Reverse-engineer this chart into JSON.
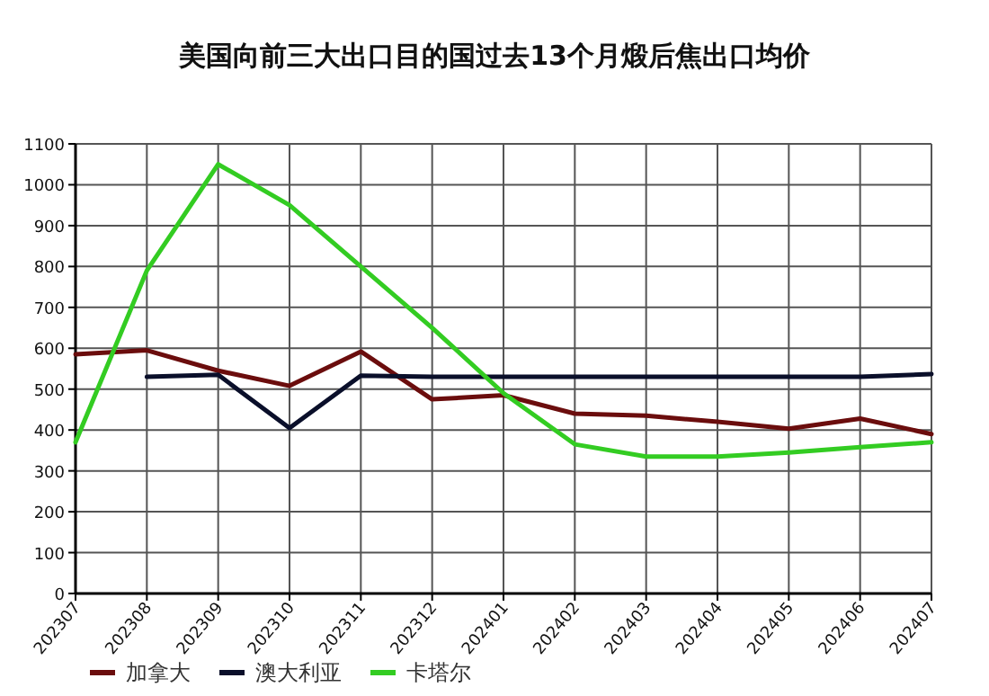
{
  "chart_data": {
    "type": "line",
    "title": "美国向前三大出口目的国过去13个月煅后焦出口均价",
    "categories": [
      "202307",
      "202308",
      "202309",
      "202310",
      "202311",
      "202312",
      "202401",
      "202402",
      "202403",
      "202404",
      "202405",
      "202406",
      "202407"
    ],
    "series": [
      {
        "name": "加拿大",
        "color": "#6b0d0d",
        "values": [
          585,
          595,
          545,
          508,
          592,
          475,
          485,
          440,
          435,
          420,
          403,
          428,
          390
        ]
      },
      {
        "name": "澳大利亚",
        "color": "#0a0f2a",
        "values": [
          null,
          530,
          535,
          405,
          533,
          530,
          530,
          530,
          530,
          530,
          530,
          530,
          537
        ]
      },
      {
        "name": "卡塔尔",
        "color": "#33cc22",
        "values": [
          370,
          790,
          1050,
          950,
          800,
          650,
          490,
          365,
          335,
          335,
          345,
          358,
          370
        ]
      }
    ],
    "ylim": [
      0,
      1100
    ],
    "yticks": [
      0,
      100,
      200,
      300,
      400,
      500,
      600,
      700,
      800,
      900,
      1000,
      1100
    ],
    "grid": true,
    "legend": "bottom left",
    "marker": "none",
    "line_style": "solid"
  }
}
